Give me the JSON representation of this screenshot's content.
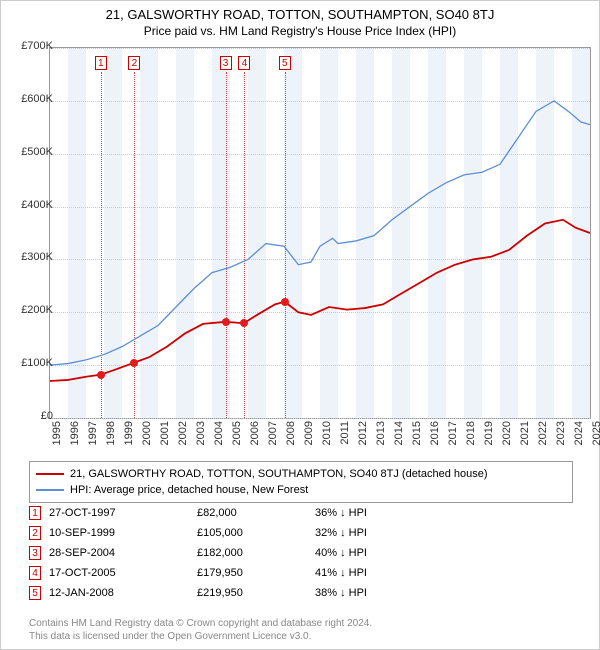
{
  "title": "21, GALSWORTHY ROAD, TOTTON, SOUTHAMPTON, SO40 8TJ",
  "subtitle": "Price paid vs. HM Land Registry's House Price Index (HPI)",
  "chart": {
    "type": "line",
    "ylim": [
      0,
      700000
    ],
    "ytick_step": 100000,
    "ylabels": [
      "£0",
      "£100K",
      "£200K",
      "£300K",
      "£400K",
      "£500K",
      "£600K",
      "£700K"
    ],
    "xlim": [
      1995,
      2025
    ],
    "xlabels": [
      "1995",
      "1996",
      "1997",
      "1998",
      "1999",
      "2000",
      "2001",
      "2002",
      "2003",
      "2004",
      "2005",
      "2006",
      "2007",
      "2008",
      "2009",
      "2010",
      "2011",
      "2012",
      "2013",
      "2014",
      "2015",
      "2016",
      "2017",
      "2018",
      "2019",
      "2020",
      "2021",
      "2022",
      "2023",
      "2024",
      "2025"
    ],
    "background_color": "#ffffff",
    "grid_color": "#cccccc",
    "band_color": "#eef3fa",
    "title_fontsize": 13,
    "label_fontsize": 11,
    "series": [
      {
        "name": "property",
        "label": "21, GALSWORTHY ROAD, TOTTON, SOUTHAMPTON, SO40 8TJ (detached house)",
        "color": "#cc0000",
        "line_width": 1.8,
        "data": [
          [
            1995,
            70000
          ],
          [
            1996,
            72000
          ],
          [
            1997,
            78000
          ],
          [
            1997.82,
            82000
          ],
          [
            1998.5,
            90000
          ],
          [
            1999.7,
            105000
          ],
          [
            2000.5,
            115000
          ],
          [
            2001.5,
            135000
          ],
          [
            2002.5,
            160000
          ],
          [
            2003.5,
            178000
          ],
          [
            2004.75,
            182000
          ],
          [
            2005.5,
            180000
          ],
          [
            2005.8,
            179950
          ],
          [
            2006.5,
            195000
          ],
          [
            2007.5,
            215000
          ],
          [
            2008.04,
            219950
          ],
          [
            2008.8,
            200000
          ],
          [
            2009.5,
            195000
          ],
          [
            2010.5,
            210000
          ],
          [
            2011.5,
            205000
          ],
          [
            2012.5,
            208000
          ],
          [
            2013.5,
            215000
          ],
          [
            2014.5,
            235000
          ],
          [
            2015.5,
            255000
          ],
          [
            2016.5,
            275000
          ],
          [
            2017.5,
            290000
          ],
          [
            2018.5,
            300000
          ],
          [
            2019.5,
            305000
          ],
          [
            2020.5,
            318000
          ],
          [
            2021.5,
            345000
          ],
          [
            2022.5,
            368000
          ],
          [
            2023.5,
            375000
          ],
          [
            2024.2,
            360000
          ],
          [
            2025,
            350000
          ]
        ]
      },
      {
        "name": "hpi",
        "label": "HPI: Average price, detached house, New Forest",
        "color": "#5b8fd6",
        "line_width": 1.3,
        "data": [
          [
            1995,
            100000
          ],
          [
            1996,
            103000
          ],
          [
            1997,
            110000
          ],
          [
            1998,
            120000
          ],
          [
            1999,
            135000
          ],
          [
            2000,
            155000
          ],
          [
            2001,
            175000
          ],
          [
            2002,
            210000
          ],
          [
            2003,
            245000
          ],
          [
            2004,
            275000
          ],
          [
            2005,
            285000
          ],
          [
            2006,
            300000
          ],
          [
            2007,
            330000
          ],
          [
            2008,
            325000
          ],
          [
            2008.8,
            290000
          ],
          [
            2009.5,
            295000
          ],
          [
            2010,
            325000
          ],
          [
            2010.7,
            340000
          ],
          [
            2011,
            330000
          ],
          [
            2012,
            335000
          ],
          [
            2013,
            345000
          ],
          [
            2014,
            375000
          ],
          [
            2015,
            400000
          ],
          [
            2016,
            425000
          ],
          [
            2017,
            445000
          ],
          [
            2018,
            460000
          ],
          [
            2019,
            465000
          ],
          [
            2020,
            480000
          ],
          [
            2021,
            530000
          ],
          [
            2022,
            580000
          ],
          [
            2023,
            600000
          ],
          [
            2023.8,
            580000
          ],
          [
            2024.5,
            560000
          ],
          [
            2025,
            555000
          ]
        ]
      }
    ],
    "sale_points": [
      {
        "n": 1,
        "x": 1997.82,
        "y": 82000
      },
      {
        "n": 2,
        "x": 1999.69,
        "y": 105000
      },
      {
        "n": 3,
        "x": 2004.75,
        "y": 182000
      },
      {
        "n": 4,
        "x": 2005.8,
        "y": 179950
      },
      {
        "n": 5,
        "x": 2008.04,
        "y": 219950
      }
    ],
    "marker_color": "#cc0000",
    "dot_color": "#e41a1c"
  },
  "legend": {
    "items": [
      {
        "color": "#cc0000",
        "label": "21, GALSWORTHY ROAD, TOTTON, SOUTHAMPTON, SO40 8TJ (detached house)"
      },
      {
        "color": "#5b8fd6",
        "label": "HPI: Average price, detached house, New Forest"
      }
    ]
  },
  "transactions": [
    {
      "n": "1",
      "date": "27-OCT-1997",
      "price": "£82,000",
      "pct": "36% ↓ HPI"
    },
    {
      "n": "2",
      "date": "10-SEP-1999",
      "price": "£105,000",
      "pct": "32% ↓ HPI"
    },
    {
      "n": "3",
      "date": "28-SEP-2004",
      "price": "£182,000",
      "pct": "40% ↓ HPI"
    },
    {
      "n": "4",
      "date": "17-OCT-2005",
      "price": "£179,950",
      "pct": "41% ↓ HPI"
    },
    {
      "n": "5",
      "date": "12-JAN-2008",
      "price": "£219,950",
      "pct": "38% ↓ HPI"
    }
  ],
  "footer": {
    "line1": "Contains HM Land Registry data © Crown copyright and database right 2024.",
    "line2": "This data is licensed under the Open Government Licence v3.0."
  }
}
